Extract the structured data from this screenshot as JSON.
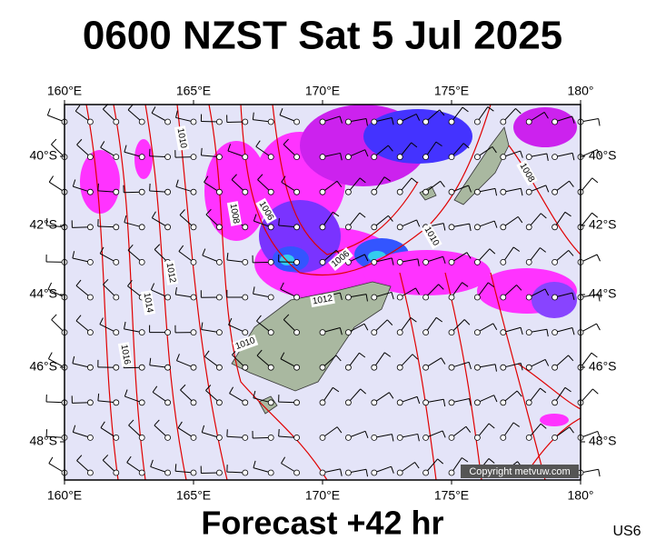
{
  "title": "0600 NZST Sat 5 Jul 2025",
  "footer": "Forecast +42 hr",
  "code": "US6",
  "copyright": "Copyright metvuw.com",
  "longitude_labels": [
    "160°E",
    "165°E",
    "170°E",
    "175°E",
    "180°"
  ],
  "latitude_labels": [
    "40°S",
    "42°S",
    "44°S",
    "46°S",
    "48°S"
  ],
  "isobar_labels": [
    "1010",
    "1008",
    "1006",
    "1012",
    "1014",
    "1016",
    "1010",
    "1012",
    "1006",
    "1010",
    "1008"
  ]
}
